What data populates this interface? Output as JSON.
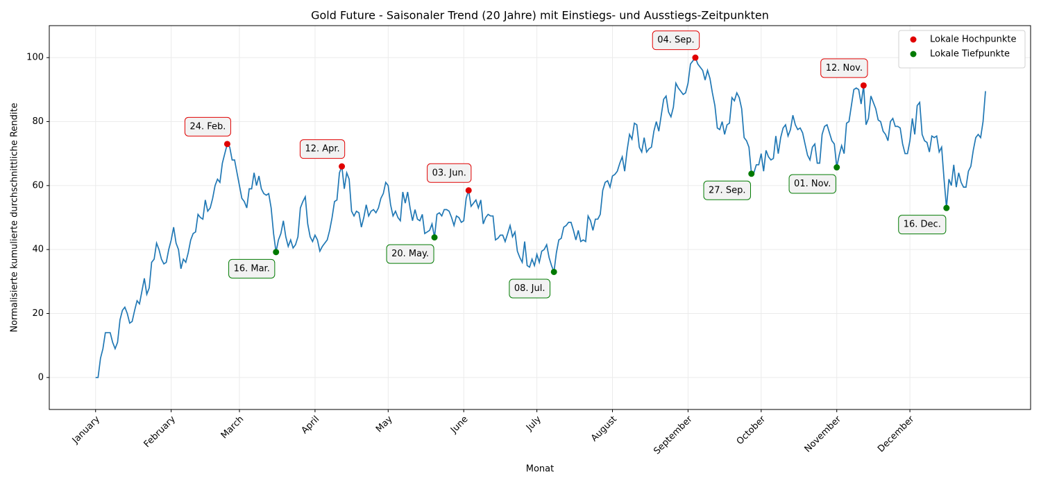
{
  "chart_data": {
    "type": "line",
    "title": "Gold Future - Saisonaler Trend (20 Jahre) mit Einstiegs- und Ausstiegs-Zeitpunkten",
    "xlabel": "Monat",
    "ylabel": "Normalisierte kumulierte durchschnittliche Rendite",
    "x": [
      0,
      1,
      2,
      3,
      4,
      5,
      6,
      7,
      8,
      9,
      10,
      11,
      12,
      13,
      14,
      15,
      16,
      17,
      18,
      19,
      20,
      21,
      22,
      23,
      24,
      25,
      26,
      27,
      28,
      29,
      30,
      31,
      32,
      33,
      34,
      35,
      36,
      37,
      38,
      39,
      40,
      41,
      42,
      43,
      44,
      45,
      46,
      47,
      48,
      49,
      50,
      51,
      52,
      53,
      54,
      55,
      56,
      57,
      58,
      59,
      60,
      61,
      62,
      63,
      64,
      65,
      66,
      67,
      68,
      69,
      70,
      71,
      72,
      73,
      74,
      75,
      76,
      77,
      78,
      79,
      80,
      81,
      82,
      83,
      84,
      85,
      86,
      87,
      88,
      89,
      90,
      91,
      92,
      93,
      94,
      95,
      96,
      97,
      98,
      99,
      100,
      101,
      102,
      103,
      104,
      105,
      106,
      107,
      108,
      109,
      110,
      111,
      112,
      113,
      114,
      115,
      116,
      117,
      118,
      119,
      120,
      121,
      122,
      123,
      124,
      125,
      126,
      127,
      128,
      129,
      130,
      131,
      132,
      133,
      134,
      135,
      136,
      137,
      138,
      139,
      140,
      141,
      142,
      143,
      144,
      145,
      146,
      147,
      148,
      149,
      150,
      151,
      152,
      153,
      154,
      155,
      156,
      157,
      158,
      159,
      160,
      161,
      162,
      163,
      164,
      165,
      166,
      167,
      168,
      169,
      170,
      171,
      172,
      173,
      174,
      175,
      176,
      177,
      178,
      179,
      180,
      181,
      182,
      183,
      184,
      185,
      186,
      187,
      188,
      189,
      190,
      191,
      192,
      193,
      194,
      195,
      196,
      197,
      198,
      199,
      200,
      201,
      202,
      203,
      204,
      205,
      206,
      207,
      208,
      209,
      210,
      211,
      212,
      213,
      214,
      215,
      216,
      217,
      218,
      219,
      220,
      221,
      222,
      223,
      224,
      225,
      226,
      227,
      228,
      229,
      230,
      231,
      232,
      233,
      234,
      235,
      236,
      237,
      238,
      239,
      240,
      241,
      242,
      243,
      244,
      245,
      246,
      247,
      248,
      249,
      250,
      251,
      252,
      253,
      254,
      255,
      256,
      257,
      258,
      259,
      260,
      261,
      262,
      263,
      264,
      265,
      266,
      267,
      268,
      269,
      270,
      271,
      272,
      273,
      274,
      275,
      276,
      277,
      278,
      279,
      280,
      281,
      282,
      283,
      284,
      285,
      286,
      287,
      288,
      289,
      290,
      291,
      292,
      293,
      294,
      295,
      296,
      297,
      298,
      299,
      300,
      301,
      302,
      303,
      304,
      305,
      306,
      307,
      308,
      309,
      310,
      311,
      312,
      313,
      314,
      315,
      316,
      317,
      318,
      319,
      320,
      321,
      322,
      323,
      324,
      325,
      326,
      327,
      328,
      329,
      330,
      331,
      332,
      333,
      334,
      335,
      336,
      337,
      338,
      339,
      340,
      341,
      342,
      343,
      344,
      345,
      346,
      347,
      348,
      349,
      350,
      351,
      352,
      353,
      354,
      355,
      356,
      357,
      358,
      359,
      360,
      361,
      362,
      363,
      364,
      365
    ],
    "series": [
      {
        "color": "#1f77b4",
        "values": [
          0,
          0,
          6,
          9,
          14,
          14,
          14,
          11,
          9,
          11,
          18,
          21,
          22,
          20,
          17,
          17.5,
          21,
          24,
          23,
          27,
          31,
          26,
          28,
          36,
          37,
          42,
          40,
          37,
          35.5,
          36,
          40,
          43,
          47,
          42,
          40,
          34,
          37,
          36,
          39,
          43,
          45,
          45.5,
          51,
          50,
          49.5,
          55.5,
          52,
          53,
          56,
          60,
          62,
          61,
          67,
          70,
          73,
          72,
          68,
          68,
          64,
          60,
          56,
          55,
          53,
          59,
          59,
          64,
          60,
          63,
          59,
          57.5,
          57,
          57.5,
          53,
          45,
          39.2,
          43,
          45,
          49,
          44,
          41,
          43,
          40.5,
          41.5,
          44,
          53,
          55,
          56.5,
          48,
          44,
          42.5,
          44.5,
          43,
          39.5,
          41,
          42,
          43,
          46,
          50,
          55,
          55.5,
          64,
          66,
          59,
          64,
          62,
          52,
          50.5,
          52,
          51.5,
          47,
          50,
          54,
          50.5,
          52,
          52.5,
          51.5,
          53,
          56,
          57.5,
          61,
          60,
          54,
          50.5,
          52,
          50,
          49,
          58,
          54.5,
          58,
          53,
          49,
          52.5,
          49.5,
          49,
          51,
          45,
          45.5,
          46,
          48,
          43.8,
          51,
          51.5,
          50.5,
          52.5,
          52.5,
          52,
          50,
          47.5,
          50.5,
          50,
          48.5,
          49,
          56,
          58.5,
          53.5,
          54.5,
          55.5,
          53,
          55.5,
          48,
          50,
          51,
          50.5,
          50.5,
          43,
          43.5,
          44.5,
          44.5,
          42.5,
          45,
          47.5,
          44,
          45.5,
          39.5,
          37.5,
          36,
          42.5,
          35,
          34.5,
          37,
          35,
          38.5,
          36,
          39.5,
          40,
          41.5,
          37.5,
          35,
          33,
          39,
          43,
          43.5,
          47,
          47.5,
          48.5,
          48.5,
          46,
          43,
          46,
          42.5,
          43,
          42.5,
          50.5,
          49,
          46,
          49.5,
          49.5,
          51,
          58.5,
          61,
          61.5,
          59.5,
          63,
          63.5,
          64.5,
          67,
          69,
          64.5,
          71,
          76,
          74.5,
          79.5,
          79,
          72,
          70.5,
          75,
          70.5,
          71.5,
          72,
          77,
          80,
          77,
          82,
          87,
          88,
          83,
          81.5,
          84.5,
          92,
          90.5,
          89.5,
          88.5,
          89,
          92,
          98,
          99,
          100,
          98,
          97,
          96,
          93,
          96,
          93.5,
          89,
          85,
          78,
          77.5,
          80,
          76,
          79,
          79.5,
          87.5,
          86.5,
          89,
          87.5,
          84,
          75,
          74,
          72,
          63.7,
          64,
          66.5,
          66.5,
          70,
          64.5,
          71,
          69,
          68,
          68.5,
          75.5,
          70,
          75,
          78,
          79,
          75.5,
          77.5,
          82,
          79,
          77.5,
          78,
          76.5,
          73,
          69.5,
          68,
          72,
          73,
          67,
          67,
          76,
          78.5,
          79,
          76.5,
          74,
          73,
          65.7,
          69.5,
          72.5,
          70,
          79.5,
          80,
          85,
          90,
          90.5,
          90,
          85.5,
          91.3,
          79,
          81,
          88,
          86,
          84,
          80.5,
          80,
          77,
          76,
          74,
          80,
          81,
          78.5,
          78.5,
          78,
          73,
          70,
          70,
          74,
          81,
          76,
          85,
          86,
          76,
          74,
          73.5,
          70.5,
          75.5,
          75,
          75.5,
          70.5,
          72,
          62,
          53,
          62,
          60,
          66.5,
          59.5,
          64,
          61,
          59.5,
          59.5,
          64.5,
          66,
          71,
          75,
          76,
          75,
          80,
          89.5
        ]
      }
    ],
    "points": [
      {
        "name": "Lokale Hochpunkte",
        "color": "#e00000",
        "x": [
          54,
          101,
          153,
          246,
          315
        ],
        "y": [
          73,
          66,
          58.5,
          100,
          91.3
        ],
        "labels": [
          "24. Feb.",
          "12. Apr.",
          "03. Jun.",
          "04. Sep.",
          "12. Nov."
        ]
      },
      {
        "name": "Lokale Tiefpunkte",
        "color": "#007a00",
        "x": [
          74,
          139,
          188,
          269,
          304,
          349
        ],
        "y": [
          39.2,
          43.8,
          33,
          63.7,
          65.7,
          53
        ],
        "labels": [
          "16. Mar.",
          "20. May.",
          "08. Jul.",
          "27. Sep.",
          "01. Nov.",
          "16. Dec."
        ]
      }
    ],
    "xlim": [
      -19,
      383.5
    ],
    "xticks": [
      {
        "value": 0,
        "label": "January"
      },
      {
        "value": 31,
        "label": "February"
      },
      {
        "value": 59,
        "label": "March"
      },
      {
        "value": 90,
        "label": "April"
      },
      {
        "value": 120,
        "label": "May"
      },
      {
        "value": 151,
        "label": "June"
      },
      {
        "value": 181,
        "label": "July"
      },
      {
        "value": 212,
        "label": "August"
      },
      {
        "value": 243,
        "label": "September"
      },
      {
        "value": 273,
        "label": "October"
      },
      {
        "value": 304,
        "label": "November"
      },
      {
        "value": 334,
        "label": "December"
      }
    ],
    "ylim": [
      -10,
      110
    ],
    "yticks": [
      0,
      20,
      40,
      60,
      80,
      100
    ],
    "grid": true,
    "legend": "upper right"
  }
}
